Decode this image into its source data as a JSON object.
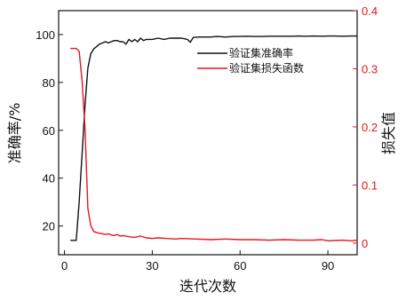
{
  "chart_data": {
    "type": "line",
    "xlabel": "迭代次数",
    "ylabel_left": "准确率/%",
    "ylabel_right": "损失值",
    "x_ticks": [
      0,
      30,
      60,
      90
    ],
    "y_left_ticks": [
      20,
      40,
      60,
      80,
      100
    ],
    "y_right_ticks": [
      0,
      0.1,
      0.2,
      0.3,
      0.4
    ],
    "xlim": [
      -2,
      100
    ],
    "ylim_left": [
      8,
      110
    ],
    "ylim_right": [
      -0.02,
      0.4
    ],
    "legend_position": "top-right",
    "colors": {
      "accuracy": "#111111",
      "loss": "#e8141c",
      "right_axis": "#e8141c"
    },
    "series": [
      {
        "name": "验证集准确率",
        "axis": "left",
        "x": [
          2,
          3,
          4,
          5,
          6,
          7,
          8,
          9,
          10,
          11,
          12,
          13,
          14,
          15,
          16,
          17,
          18,
          19,
          20,
          21,
          22,
          23,
          24,
          25,
          26,
          27,
          28,
          29,
          30,
          32,
          34,
          36,
          38,
          40,
          42,
          43,
          44,
          46,
          48,
          50,
          52,
          55,
          58,
          60,
          62,
          65,
          68,
          70,
          72,
          75,
          78,
          80,
          82,
          85,
          88,
          90,
          92,
          95,
          98,
          100
        ],
        "values": [
          14,
          14,
          14,
          30,
          50,
          70,
          86,
          92,
          94,
          95,
          96,
          96.5,
          97,
          96.5,
          97,
          97.5,
          97.5,
          97,
          97,
          96,
          98,
          97,
          98,
          97,
          98.5,
          97.5,
          98,
          98,
          98,
          98.5,
          98,
          98.5,
          98.5,
          98.5,
          98,
          96.8,
          98.8,
          99,
          99,
          99,
          99.2,
          99,
          99.2,
          99.2,
          99.3,
          99.2,
          99.2,
          99.3,
          99.3,
          99.3,
          99.3,
          99.4,
          99.3,
          99.4,
          99.3,
          99.4,
          99.4,
          99.3,
          99.4,
          99.4
        ]
      },
      {
        "name": "验证集损失函数",
        "axis": "right",
        "x": [
          2,
          3,
          4,
          5,
          6,
          7,
          8,
          9,
          10,
          11,
          12,
          13,
          14,
          15,
          16,
          17,
          18,
          19,
          20,
          22,
          24,
          26,
          28,
          30,
          32,
          35,
          38,
          40,
          45,
          50,
          55,
          60,
          65,
          70,
          75,
          80,
          85,
          88,
          90,
          95,
          98,
          100
        ],
        "values": [
          0.335,
          0.335,
          0.335,
          0.33,
          0.28,
          0.2,
          0.06,
          0.03,
          0.02,
          0.018,
          0.017,
          0.016,
          0.015,
          0.016,
          0.014,
          0.013,
          0.015,
          0.012,
          0.013,
          0.011,
          0.01,
          0.012,
          0.009,
          0.008,
          0.009,
          0.008,
          0.007,
          0.008,
          0.007,
          0.006,
          0.007,
          0.006,
          0.006,
          0.005,
          0.006,
          0.005,
          0.005,
          0.006,
          0.004,
          0.005,
          0.004,
          0.005
        ]
      }
    ]
  }
}
